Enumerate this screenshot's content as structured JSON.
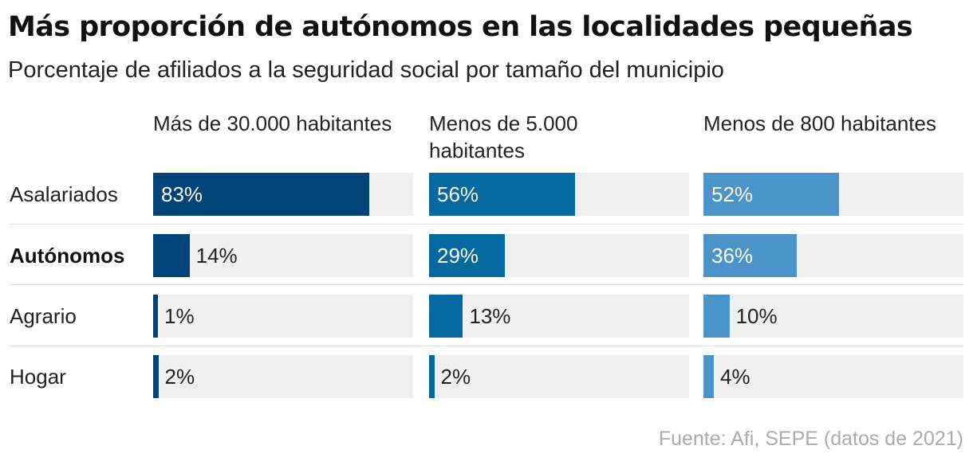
{
  "header": {
    "title": "Más proporción de autónomos en las localidades pequeñas",
    "subtitle": "Porcentaje de afiliados a la seguridad social por tamaño del municipio"
  },
  "footer": {
    "source": "Fuente: Afi, SEPE (datos de 2021)"
  },
  "chart_data": {
    "type": "bar",
    "orientation": "horizontal",
    "title": "Más proporción de autónomos en las localidades pequeñas",
    "subtitle": "Porcentaje de afiliados a la seguridad social por tamaño del municipio",
    "unit": "%",
    "xlim": [
      0,
      100
    ],
    "categories": [
      "Asalariados",
      "Autónomos",
      "Agrario",
      "Hogar"
    ],
    "highlighted_category": "Autónomos",
    "series": [
      {
        "name": "Más de 30.000 habitantes",
        "color": "#00447a",
        "values": [
          83,
          14,
          1,
          2
        ],
        "labels": [
          "83%",
          "14%",
          "1%",
          "2%"
        ]
      },
      {
        "name": "Menos de 5.000 habitantes",
        "color": "#05689f",
        "values": [
          56,
          29,
          13,
          2
        ],
        "labels": [
          "56%",
          "29%",
          "13%",
          "2%"
        ]
      },
      {
        "name": "Menos de 800 habitantes",
        "color": "#4b93c9",
        "values": [
          52,
          36,
          10,
          4
        ],
        "labels": [
          "52%",
          "36%",
          "10%",
          "4%"
        ]
      }
    ],
    "source": "Fuente: Afi, SEPE (datos de 2021)"
  }
}
